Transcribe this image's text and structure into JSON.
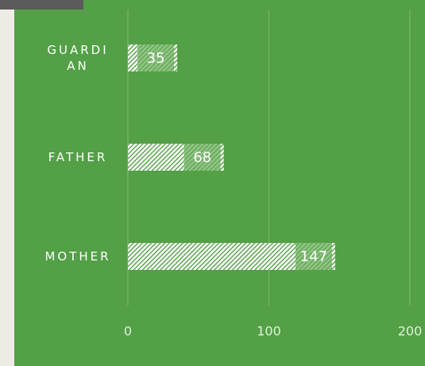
{
  "chart_data": {
    "type": "barh",
    "categories": [
      "GUARDIAN",
      "FATHER",
      "MOTHER"
    ],
    "values": [
      35,
      68,
      147
    ],
    "color": "#ffffff",
    "xlim": [
      0,
      200
    ],
    "xticks": [
      0,
      100,
      200
    ],
    "grid": true
  }
}
